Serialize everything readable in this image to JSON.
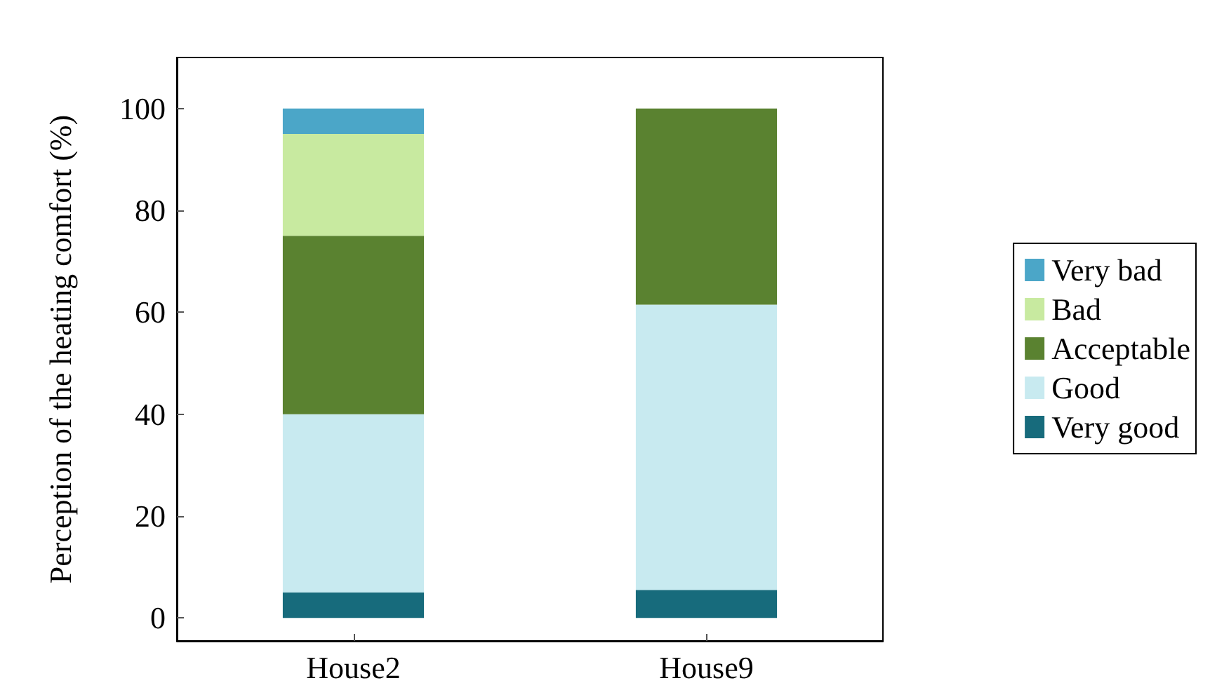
{
  "chart_data": {
    "type": "bar",
    "stacked": true,
    "ylabel": "Perception of the heating comfort (%)",
    "categories": [
      "House2",
      "House9"
    ],
    "series": [
      {
        "name": "Very good",
        "color": "#176b7c",
        "values": [
          5,
          5.5
        ]
      },
      {
        "name": "Good",
        "color": "#c8eaf0",
        "values": [
          35,
          56
        ]
      },
      {
        "name": "Acceptable",
        "color": "#5a8230",
        "values": [
          35,
          38.5
        ]
      },
      {
        "name": "Bad",
        "color": "#c8eaa0",
        "values": [
          20,
          0
        ]
      },
      {
        "name": "Very bad",
        "color": "#4ba6c8",
        "values": [
          5,
          0
        ]
      }
    ],
    "ylim": [
      -4.5,
      110
    ],
    "yticks": [
      0,
      20,
      40,
      60,
      80,
      100
    ],
    "grid": false,
    "legend": "right"
  }
}
